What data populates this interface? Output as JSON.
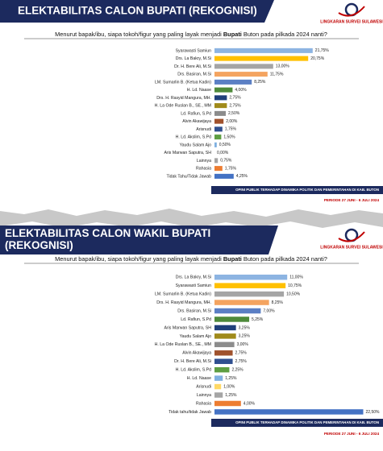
{
  "chart_data": [
    {
      "type": "bar",
      "orientation": "horizontal",
      "title": "ELEKTABILITAS CALON BUPATI (REKOGNISI)",
      "brand": "LINGKARAN SURVEI SULAWESI",
      "subtitle": [
        "Menurut bapak/ibu, siapa tokoh/figur yang paling layak menjadi ",
        "Bupati",
        " Buton pada pilkada 2024 nanti?"
      ],
      "categories": [
        "Syarawasti Samiun",
        "Drs. La Bakry, M.Si",
        "Dr. H. Bere Ali, M.Si",
        "Drs. Basiran, M.Si",
        "LM. Sumarlin B. (Ketua Kadin)",
        "H. Ld. Naase",
        "Drs. H. Rasyid Mangura, MH.",
        "H. La Ode Ruslan B., SE., MM",
        "Ld. Rafiun, S.Pd",
        "Alvin Akawijaya",
        "Arisnudi",
        "H. Ld. Akslim, S.Pd",
        "Yaudu Salam Ajo",
        "Aris Marwan Saputra, SH",
        "Lainnya",
        "Rahasia",
        "Tidak Tahu/Tidak Jawab"
      ],
      "values": [
        21.75,
        20.75,
        13.0,
        11.75,
        8.25,
        4.0,
        2.75,
        2.75,
        2.5,
        2.0,
        1.75,
        1.5,
        0.5,
        0.0,
        0.75,
        1.75,
        4.25
      ],
      "value_labels": [
        "21,75%",
        "20,75%",
        "13,00%",
        "11,75%",
        "8,25%",
        "4,00%",
        "2,75%",
        "2,75%",
        "2,50%",
        "2,00%",
        "1,75%",
        "1,50%",
        "0,50%",
        "0,00%",
        "0,75%",
        "1,75%",
        "4,25%"
      ],
      "colors": [
        "#8db4e2",
        "#ffc000",
        "#a5a5a5",
        "#f4a460",
        "#5b7fc4",
        "#4e8a3a",
        "#1f3f7a",
        "#a08a1a",
        "#8c8c8c",
        "#a0522d",
        "#2f4f8f",
        "#5e9e42",
        "#7fb0e0",
        "#c0c0c0",
        "#a5a5a5",
        "#ed7d31",
        "#4472c4"
      ],
      "footer": "OPINI PUBLIK TERHADAP DINAMIKA POLITIK DAN PEMERINTAHAN DI KAB. BUTON",
      "period": "PERIODE 27 JUNI - 6 JULI 2024"
    },
    {
      "type": "bar",
      "orientation": "horizontal",
      "title": "ELEKTABILITAS CALON WAKIL BUPATI (REKOGNISI)",
      "brand": "LINGKARAN SURVEI SULAWESI",
      "subtitle": [
        "Menurut bapak/ibu, siapa tokoh/figur yang paling layak menjadi ",
        "Bupati",
        " Buton pada pilkada 2024 nanti?"
      ],
      "categories": [
        "Drs. La Bakry, M.Si",
        "Syarawasti Samiun",
        "LM. Sumarlin B. (Ketua Kadin)",
        "Drs. H. Rasyid Mangura, MH.",
        "Drs. Basiran, M.Si",
        "Ld. Rafiun, S.Pd",
        "Aris Marwan Saputra, SH",
        "Yaudu Salam Ajo",
        "H. La Ode Ruslan B., SE., MM",
        "Alvin Akawijaya",
        "Dr. H. Bere Ali, M.Si",
        "H. Ld. Akslim, S.Pd",
        "H. Ld. Naase",
        "Arisnudi",
        "Lainnya",
        "Rahasia",
        "Tidak tahu/tidak Jawab"
      ],
      "values": [
        11.0,
        10.75,
        10.5,
        8.25,
        7.0,
        5.25,
        3.25,
        3.25,
        3.0,
        2.75,
        2.75,
        2.25,
        1.25,
        1.0,
        1.25,
        4.0,
        22.5
      ],
      "value_labels": [
        "11,00%",
        "10,75%",
        "10,50%",
        "8,25%",
        "7,00%",
        "5,25%",
        "3,25%",
        "3,25%",
        "3,00%",
        "2,75%",
        "2,75%",
        "2,25%",
        "1,25%",
        "1,00%",
        "1,25%",
        "4,00%",
        "22,50%"
      ],
      "colors": [
        "#8db4e2",
        "#ffc000",
        "#a5a5a5",
        "#f4a460",
        "#5b7fc4",
        "#4e8a3a",
        "#1f3f7a",
        "#a08a1a",
        "#8c8c8c",
        "#a0522d",
        "#2f4f8f",
        "#5e9e42",
        "#7fb0e0",
        "#ffd966",
        "#a5a5a5",
        "#ed7d31",
        "#4472c4"
      ],
      "footer": "OPINI PUBLIK TERHADAP DINAMIKA POLITIK DAN PEMERINTAHAN DI KAB. BUTON",
      "period": "PERIODE 27 JUNI - 6 JULI 2024"
    }
  ]
}
